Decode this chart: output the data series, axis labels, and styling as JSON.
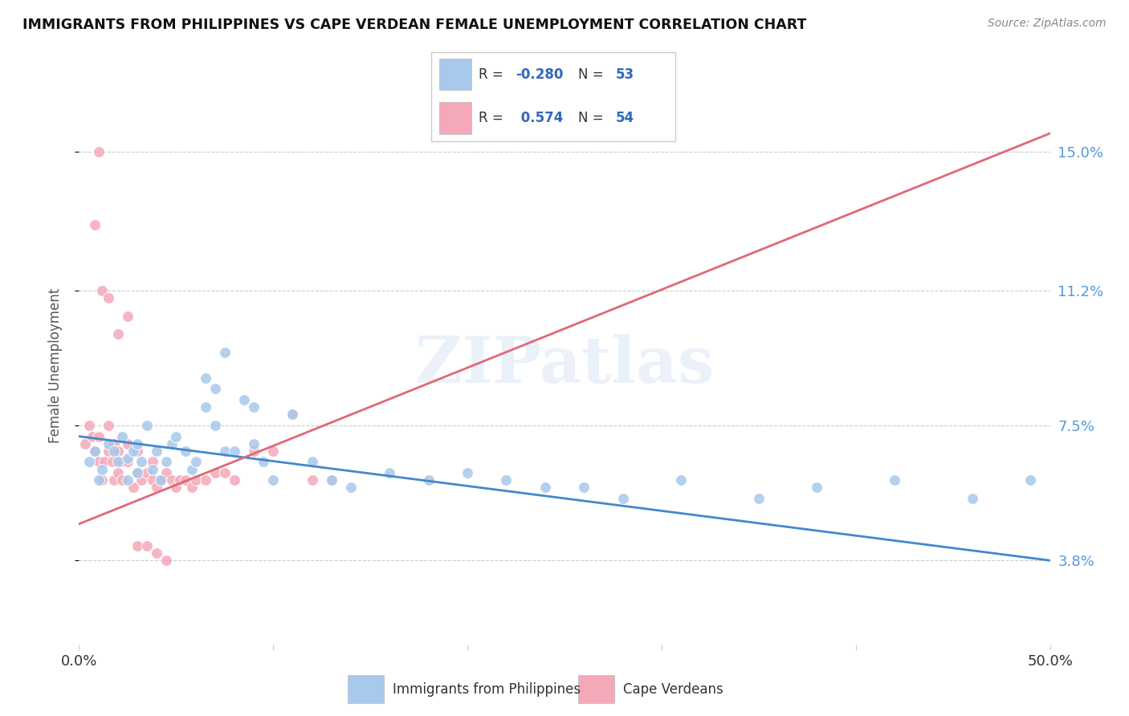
{
  "title": "IMMIGRANTS FROM PHILIPPINES VS CAPE VERDEAN FEMALE UNEMPLOYMENT CORRELATION CHART",
  "source": "Source: ZipAtlas.com",
  "ylabel": "Female Unemployment",
  "yticks": [
    "15.0%",
    "11.2%",
    "7.5%",
    "3.8%"
  ],
  "ytick_vals": [
    0.15,
    0.112,
    0.075,
    0.038
  ],
  "xmin": 0.0,
  "xmax": 0.5,
  "ymin": 0.015,
  "ymax": 0.168,
  "blue_color": "#A8C8EC",
  "pink_color": "#F4A8B8",
  "blue_line_color": "#4488CC",
  "pink_line_color": "#E06878",
  "legend_R_blue": "-0.280",
  "legend_N_blue": "53",
  "legend_R_pink": "0.574",
  "legend_N_pink": "54",
  "legend_label_blue": "Immigrants from Philippines",
  "legend_label_pink": "Cape Verdeans",
  "watermark": "ZIPatlas",
  "blue_scatter_x": [
    0.005,
    0.008,
    0.01,
    0.012,
    0.015,
    0.018,
    0.02,
    0.022,
    0.025,
    0.025,
    0.028,
    0.03,
    0.03,
    0.032,
    0.035,
    0.038,
    0.04,
    0.042,
    0.045,
    0.048,
    0.05,
    0.055,
    0.058,
    0.06,
    0.065,
    0.07,
    0.075,
    0.08,
    0.09,
    0.095,
    0.1,
    0.11,
    0.12,
    0.13,
    0.14,
    0.16,
    0.18,
    0.2,
    0.22,
    0.24,
    0.26,
    0.28,
    0.31,
    0.35,
    0.38,
    0.42,
    0.46,
    0.49,
    0.065,
    0.07,
    0.075,
    0.085,
    0.09
  ],
  "blue_scatter_y": [
    0.065,
    0.068,
    0.06,
    0.063,
    0.07,
    0.068,
    0.065,
    0.072,
    0.06,
    0.066,
    0.068,
    0.062,
    0.07,
    0.065,
    0.075,
    0.063,
    0.068,
    0.06,
    0.065,
    0.07,
    0.072,
    0.068,
    0.063,
    0.065,
    0.08,
    0.075,
    0.068,
    0.068,
    0.07,
    0.065,
    0.06,
    0.078,
    0.065,
    0.06,
    0.058,
    0.062,
    0.06,
    0.062,
    0.06,
    0.058,
    0.058,
    0.055,
    0.06,
    0.055,
    0.058,
    0.06,
    0.055,
    0.06,
    0.088,
    0.085,
    0.095,
    0.082,
    0.08
  ],
  "pink_scatter_x": [
    0.003,
    0.005,
    0.007,
    0.008,
    0.01,
    0.01,
    0.012,
    0.013,
    0.015,
    0.015,
    0.017,
    0.018,
    0.018,
    0.02,
    0.02,
    0.022,
    0.022,
    0.025,
    0.025,
    0.028,
    0.03,
    0.03,
    0.032,
    0.035,
    0.038,
    0.038,
    0.04,
    0.042,
    0.045,
    0.048,
    0.05,
    0.052,
    0.055,
    0.058,
    0.06,
    0.065,
    0.07,
    0.075,
    0.08,
    0.09,
    0.1,
    0.11,
    0.12,
    0.13,
    0.008,
    0.01,
    0.012,
    0.015,
    0.02,
    0.025,
    0.03,
    0.035,
    0.04,
    0.045
  ],
  "pink_scatter_y": [
    0.07,
    0.075,
    0.072,
    0.068,
    0.065,
    0.072,
    0.06,
    0.065,
    0.068,
    0.075,
    0.065,
    0.06,
    0.07,
    0.062,
    0.068,
    0.06,
    0.065,
    0.065,
    0.07,
    0.058,
    0.062,
    0.068,
    0.06,
    0.062,
    0.06,
    0.065,
    0.058,
    0.06,
    0.062,
    0.06,
    0.058,
    0.06,
    0.06,
    0.058,
    0.06,
    0.06,
    0.062,
    0.062,
    0.06,
    0.068,
    0.068,
    0.078,
    0.06,
    0.06,
    0.13,
    0.15,
    0.112,
    0.11,
    0.1,
    0.105,
    0.042,
    0.042,
    0.04,
    0.038
  ],
  "blue_trend_x": [
    0.0,
    0.5
  ],
  "blue_trend_y": [
    0.072,
    0.038
  ],
  "pink_trend_x": [
    0.0,
    0.5
  ],
  "pink_trend_y": [
    0.048,
    0.155
  ]
}
